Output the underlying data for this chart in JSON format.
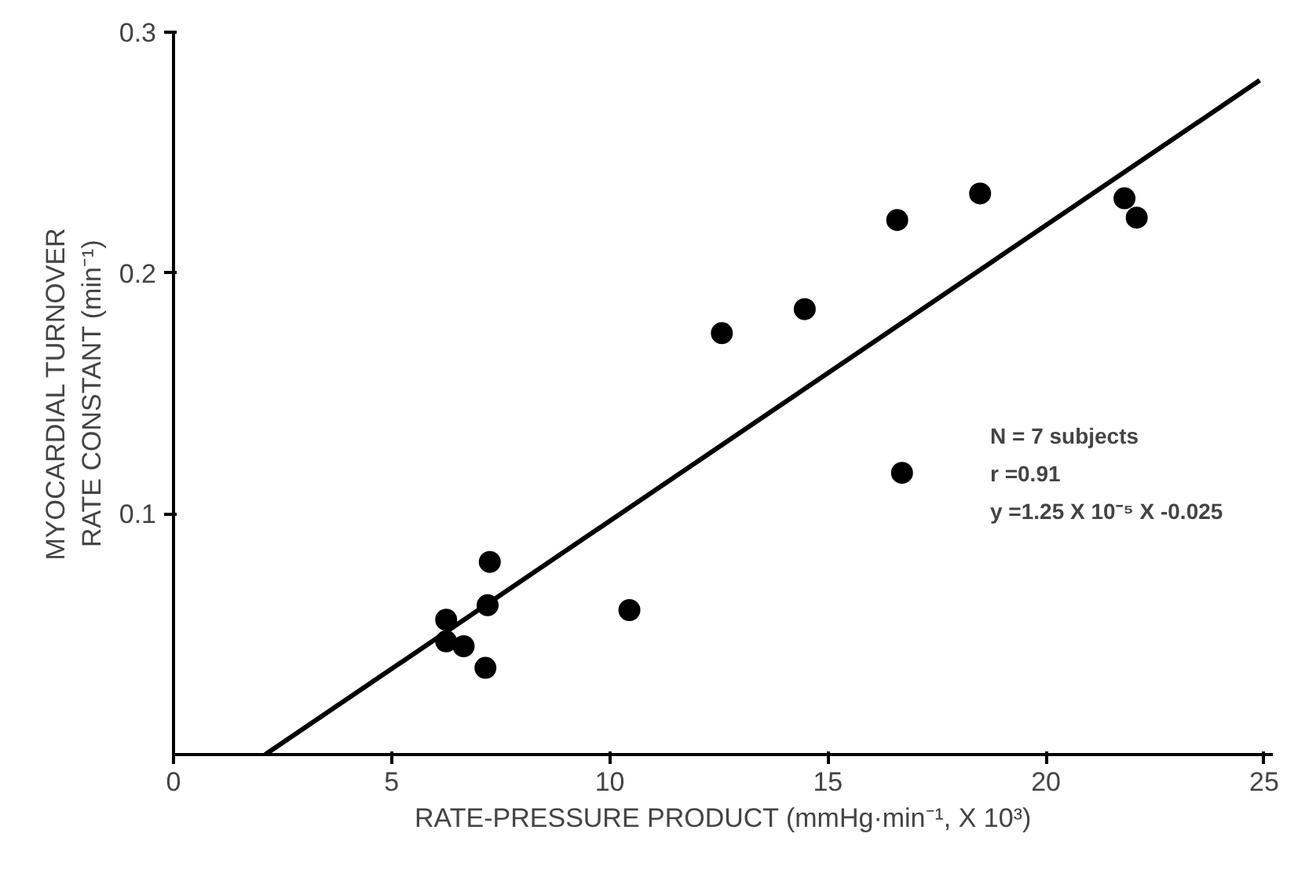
{
  "chart_data": {
    "type": "scatter",
    "xlabel": "RATE-PRESSURE PRODUCT (mmHg·min⁻¹, X 10³)",
    "ylabel": "MYOCARDIAL TURNOVER\nRATE CONSTANT (min⁻¹)",
    "series": [
      {
        "color": "#000000",
        "marker": "circle",
        "x": [
          6.25,
          6.25,
          6.65,
          7.15,
          7.2,
          7.25,
          10.45,
          12.57,
          14.47,
          16.59,
          16.7,
          18.49,
          21.8,
          22.08
        ],
        "values": [
          0.056,
          0.047,
          0.045,
          0.036,
          0.062,
          0.08,
          0.06,
          0.175,
          0.185,
          0.222,
          0.117,
          0.233,
          0.231,
          0.223
        ]
      },
      {
        "type": "line",
        "color": "#000000",
        "x": [
          2.1,
          24.9
        ],
        "values": [
          0,
          0.28
        ]
      }
    ],
    "xlim": [
      0,
      25.2
    ],
    "ylim": [
      0,
      0.3
    ],
    "xticks": [
      0,
      5,
      10,
      15,
      20,
      25
    ],
    "yticks": [
      0.1,
      0.2,
      0.3
    ],
    "grid": false,
    "annotations": [
      "N = 7 subjects",
      "r =0.91",
      "y =1.25 X 10⁻⁵ X -0.025"
    ]
  }
}
